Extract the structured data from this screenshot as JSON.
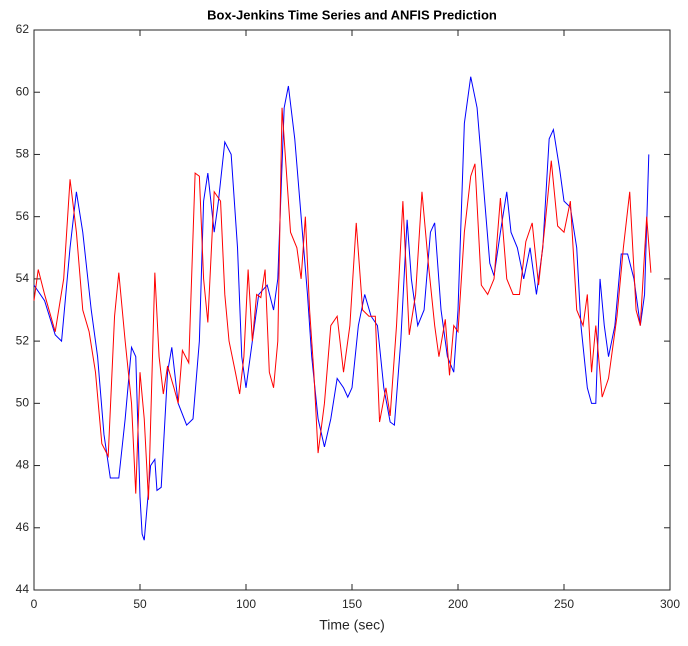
{
  "chart_data": {
    "type": "line",
    "title": "Box-Jenkins Time Series and ANFIS Prediction",
    "x_label": "Time (sec)",
    "xlim": [
      0,
      300
    ],
    "xticks": [
      0,
      50,
      100,
      150,
      200,
      250,
      300
    ],
    "ylim": [
      44,
      62
    ],
    "yticks": [
      44,
      46,
      48,
      50,
      52,
      54,
      56,
      58,
      60,
      62
    ],
    "series": [
      {
        "color": "#0000ff",
        "x": [
          0,
          5,
          10,
          13,
          17,
          20,
          23,
          27,
          30,
          33,
          36,
          40,
          43,
          46,
          48,
          50,
          51,
          52,
          55,
          57,
          58,
          60,
          63,
          65,
          68,
          72,
          75,
          78,
          80,
          82,
          85,
          87,
          90,
          93,
          96,
          98,
          100,
          103,
          106,
          110,
          113,
          115,
          118,
          120,
          123,
          126,
          129,
          131,
          134,
          137,
          140,
          143,
          146,
          148,
          150,
          153,
          156,
          159,
          162,
          165,
          168,
          170,
          173,
          176,
          178,
          181,
          184,
          187,
          189,
          192,
          195,
          198,
          200,
          203,
          206,
          209,
          212,
          215,
          217,
          220,
          223,
          225,
          228,
          231,
          234,
          237,
          240,
          243,
          245,
          248,
          250,
          253,
          256,
          258,
          261,
          263,
          265,
          267,
          269,
          271,
          274,
          277,
          280,
          283,
          286,
          288,
          290
        ],
        "values": [
          53.8,
          53.3,
          52.2,
          52.0,
          55,
          56.8,
          55.5,
          53,
          51.5,
          49,
          47.6,
          47.6,
          49.5,
          51.8,
          51.5,
          47,
          45.8,
          45.6,
          48,
          48.2,
          47.2,
          47.3,
          51,
          51.8,
          50,
          49.3,
          49.5,
          52,
          56.5,
          57.4,
          55.5,
          56.5,
          58.4,
          58,
          55,
          51.5,
          50.5,
          52,
          53.5,
          53.8,
          53,
          54,
          59.5,
          60.2,
          58.5,
          56,
          53.5,
          51.5,
          49.5,
          48.6,
          49.5,
          50.8,
          50.5,
          50.2,
          50.5,
          52.5,
          53.5,
          52.8,
          52.5,
          50.5,
          49.4,
          49.3,
          52,
          55.9,
          54,
          52.5,
          53,
          55.5,
          55.8,
          53,
          51.5,
          51,
          53,
          59,
          60.5,
          59.5,
          57,
          54.5,
          54.1,
          55.5,
          56.8,
          55.5,
          55,
          54,
          55,
          53.5,
          55,
          58.5,
          58.8,
          57.5,
          56.5,
          56.3,
          55,
          52.5,
          50.5,
          50,
          50,
          54,
          52.5,
          51.5,
          52.5,
          54.8,
          54.8,
          54,
          52.5,
          53.5,
          58
        ]
      },
      {
        "color": "#ff0000",
        "x": [
          0,
          2,
          5,
          10,
          14,
          17,
          20,
          23,
          26,
          29,
          32,
          35,
          38,
          40,
          43,
          46,
          48,
          50,
          52,
          54,
          57,
          59,
          61,
          63,
          66,
          68,
          70,
          73,
          76,
          78,
          80,
          82,
          85,
          88,
          90,
          92,
          95,
          97,
          99,
          101,
          103,
          105,
          107,
          109,
          111,
          113,
          115,
          117,
          119,
          121,
          124,
          126,
          128,
          130,
          132,
          134,
          137,
          140,
          143,
          146,
          149,
          152,
          155,
          158,
          161,
          163,
          166,
          168,
          171,
          174,
          177,
          180,
          183,
          186,
          189,
          191,
          194,
          196,
          198,
          200,
          203,
          206,
          208,
          211,
          214,
          217,
          220,
          223,
          226,
          229,
          232,
          235,
          238,
          241,
          244,
          247,
          250,
          253,
          256,
          259,
          261,
          263,
          265,
          268,
          271,
          273,
          275,
          278,
          281,
          284,
          286,
          289,
          291
        ],
        "values": [
          53.3,
          54.3,
          53.5,
          52.3,
          54,
          57.2,
          55.5,
          53,
          52.3,
          51,
          48.7,
          48.3,
          52.8,
          54.2,
          52,
          50,
          47.1,
          51,
          49.5,
          46.9,
          54.2,
          51.5,
          50.3,
          51.2,
          50.5,
          50,
          51.7,
          51.3,
          57.4,
          57.3,
          54,
          52.6,
          56.8,
          56.5,
          53.5,
          52,
          51,
          50.3,
          51.5,
          54.3,
          52,
          53.5,
          53.4,
          54.3,
          51,
          50.5,
          52,
          59.5,
          57.5,
          55.5,
          55,
          54,
          56,
          53,
          51,
          48.4,
          50,
          52.5,
          52.8,
          51,
          52.5,
          55.8,
          53,
          52.8,
          52.8,
          49.4,
          50.5,
          49.6,
          52.5,
          56.5,
          52.2,
          53.5,
          56.8,
          54.5,
          52.5,
          51.5,
          52.7,
          50.9,
          52.5,
          52.3,
          55.5,
          57.3,
          57.7,
          53.8,
          53.5,
          54,
          56.6,
          54,
          53.5,
          53.5,
          55.2,
          55.8,
          53.8,
          55.7,
          57.8,
          55.7,
          55.5,
          56.5,
          53,
          52.5,
          53.5,
          51,
          52.5,
          50.2,
          50.8,
          51.8,
          52.8,
          55,
          56.8,
          53,
          52.5,
          56,
          54.2
        ]
      }
    ]
  }
}
